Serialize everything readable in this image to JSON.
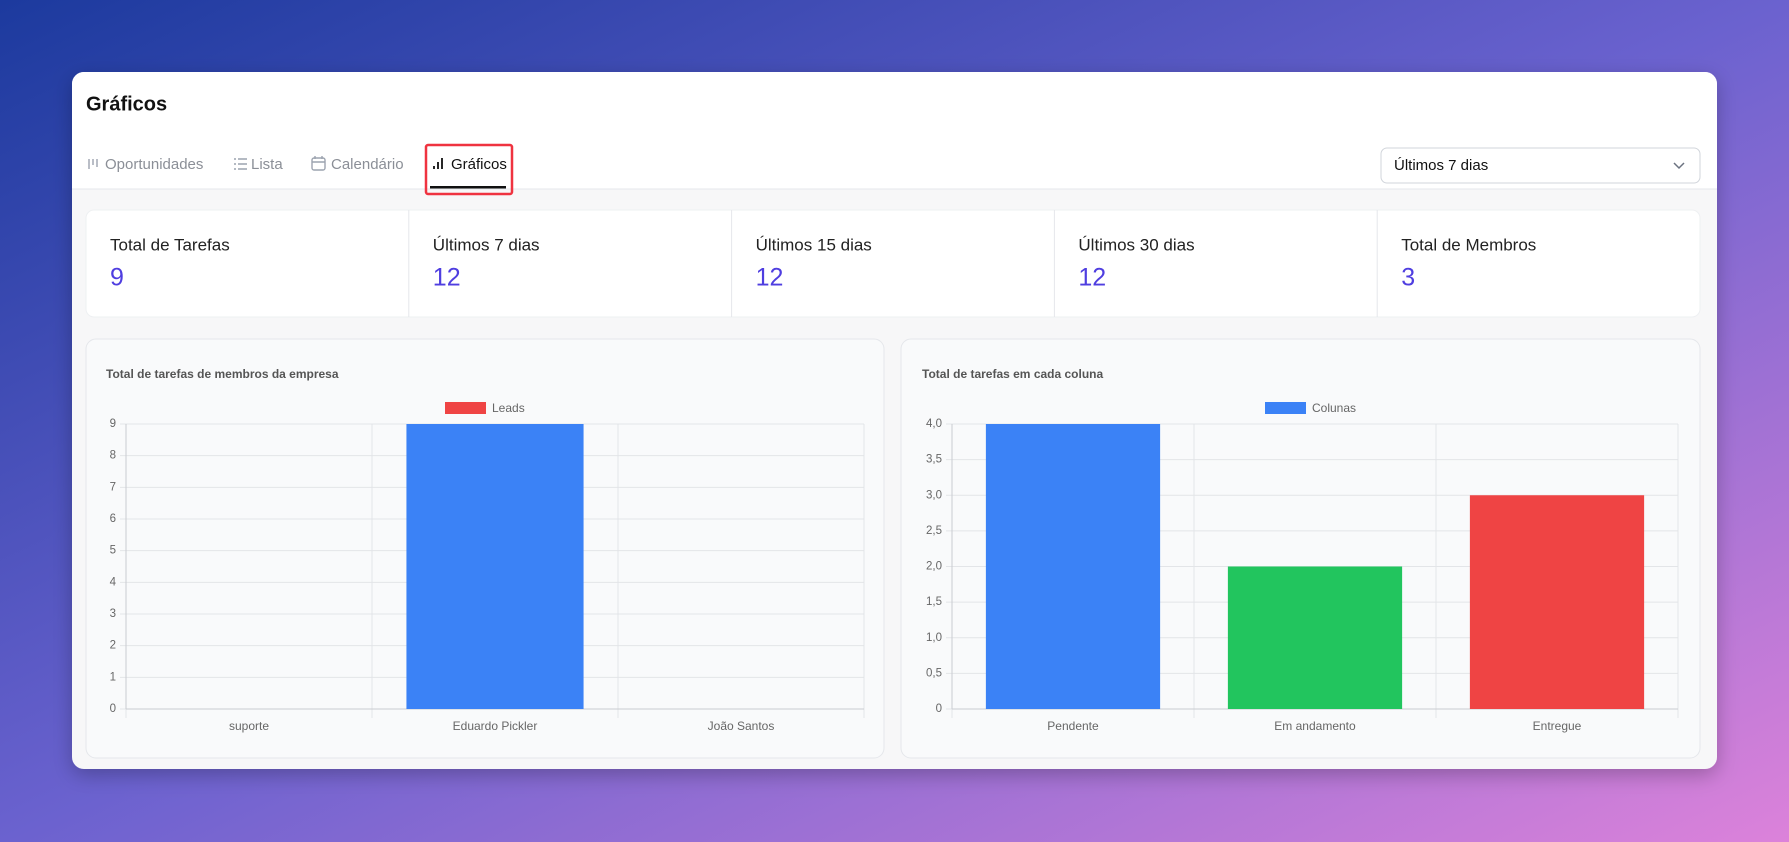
{
  "header": {
    "title": "Gráficos"
  },
  "tabs": [
    "Oportunidades",
    "Lista",
    "Calendário",
    "Gráficos"
  ],
  "filter": {
    "selected": "Últimos 7 dias"
  },
  "stats": [
    {
      "label": "Total de Tarefas",
      "value": 9
    },
    {
      "label": "Últimos 7 dias",
      "value": 12
    },
    {
      "label": "Últimos 15 dias",
      "value": 12
    },
    {
      "label": "Últimos 30 dias",
      "value": 12
    },
    {
      "label": "Total de Membros",
      "value": 3
    }
  ],
  "chart_data": [
    {
      "type": "bar",
      "title": "Total de tarefas de membros da empresa",
      "categories": [
        "suporte",
        "Eduardo Pickler",
        "João Santos"
      ],
      "series": [
        {
          "name": "Leads",
          "color": "#ef4444",
          "values": [
            0,
            9,
            0
          ]
        }
      ],
      "bar_colors": [
        "#3b82f6",
        "#3b82f6",
        "#3b82f6"
      ],
      "ylim": [
        0,
        9
      ],
      "yticks": [
        0,
        1,
        2,
        3,
        4,
        5,
        6,
        7,
        8,
        9
      ],
      "grid": true
    },
    {
      "type": "bar",
      "title": "Total de tarefas em cada coluna",
      "categories": [
        "Pendente",
        "Em andamento",
        "Entregue"
      ],
      "series": [
        {
          "name": "Colunas",
          "color": "#3b82f6",
          "values": [
            4,
            2,
            3
          ]
        }
      ],
      "bar_colors": [
        "#3b82f6",
        "#22c55e",
        "#ef4444"
      ],
      "ylim": [
        0,
        4
      ],
      "yticks": [
        0,
        {
          "value": 0.5,
          "label": "0,5"
        },
        {
          "value": 1,
          "label": "1,0"
        },
        {
          "value": 1.5,
          "label": "1,5"
        },
        {
          "value": 2,
          "label": "2,0"
        },
        {
          "value": 2.5,
          "label": "2,5"
        },
        {
          "value": 3,
          "label": "3,0"
        },
        {
          "value": 3.5,
          "label": "3,5"
        },
        {
          "value": 4,
          "label": "4,0"
        }
      ],
      "grid": true
    }
  ]
}
